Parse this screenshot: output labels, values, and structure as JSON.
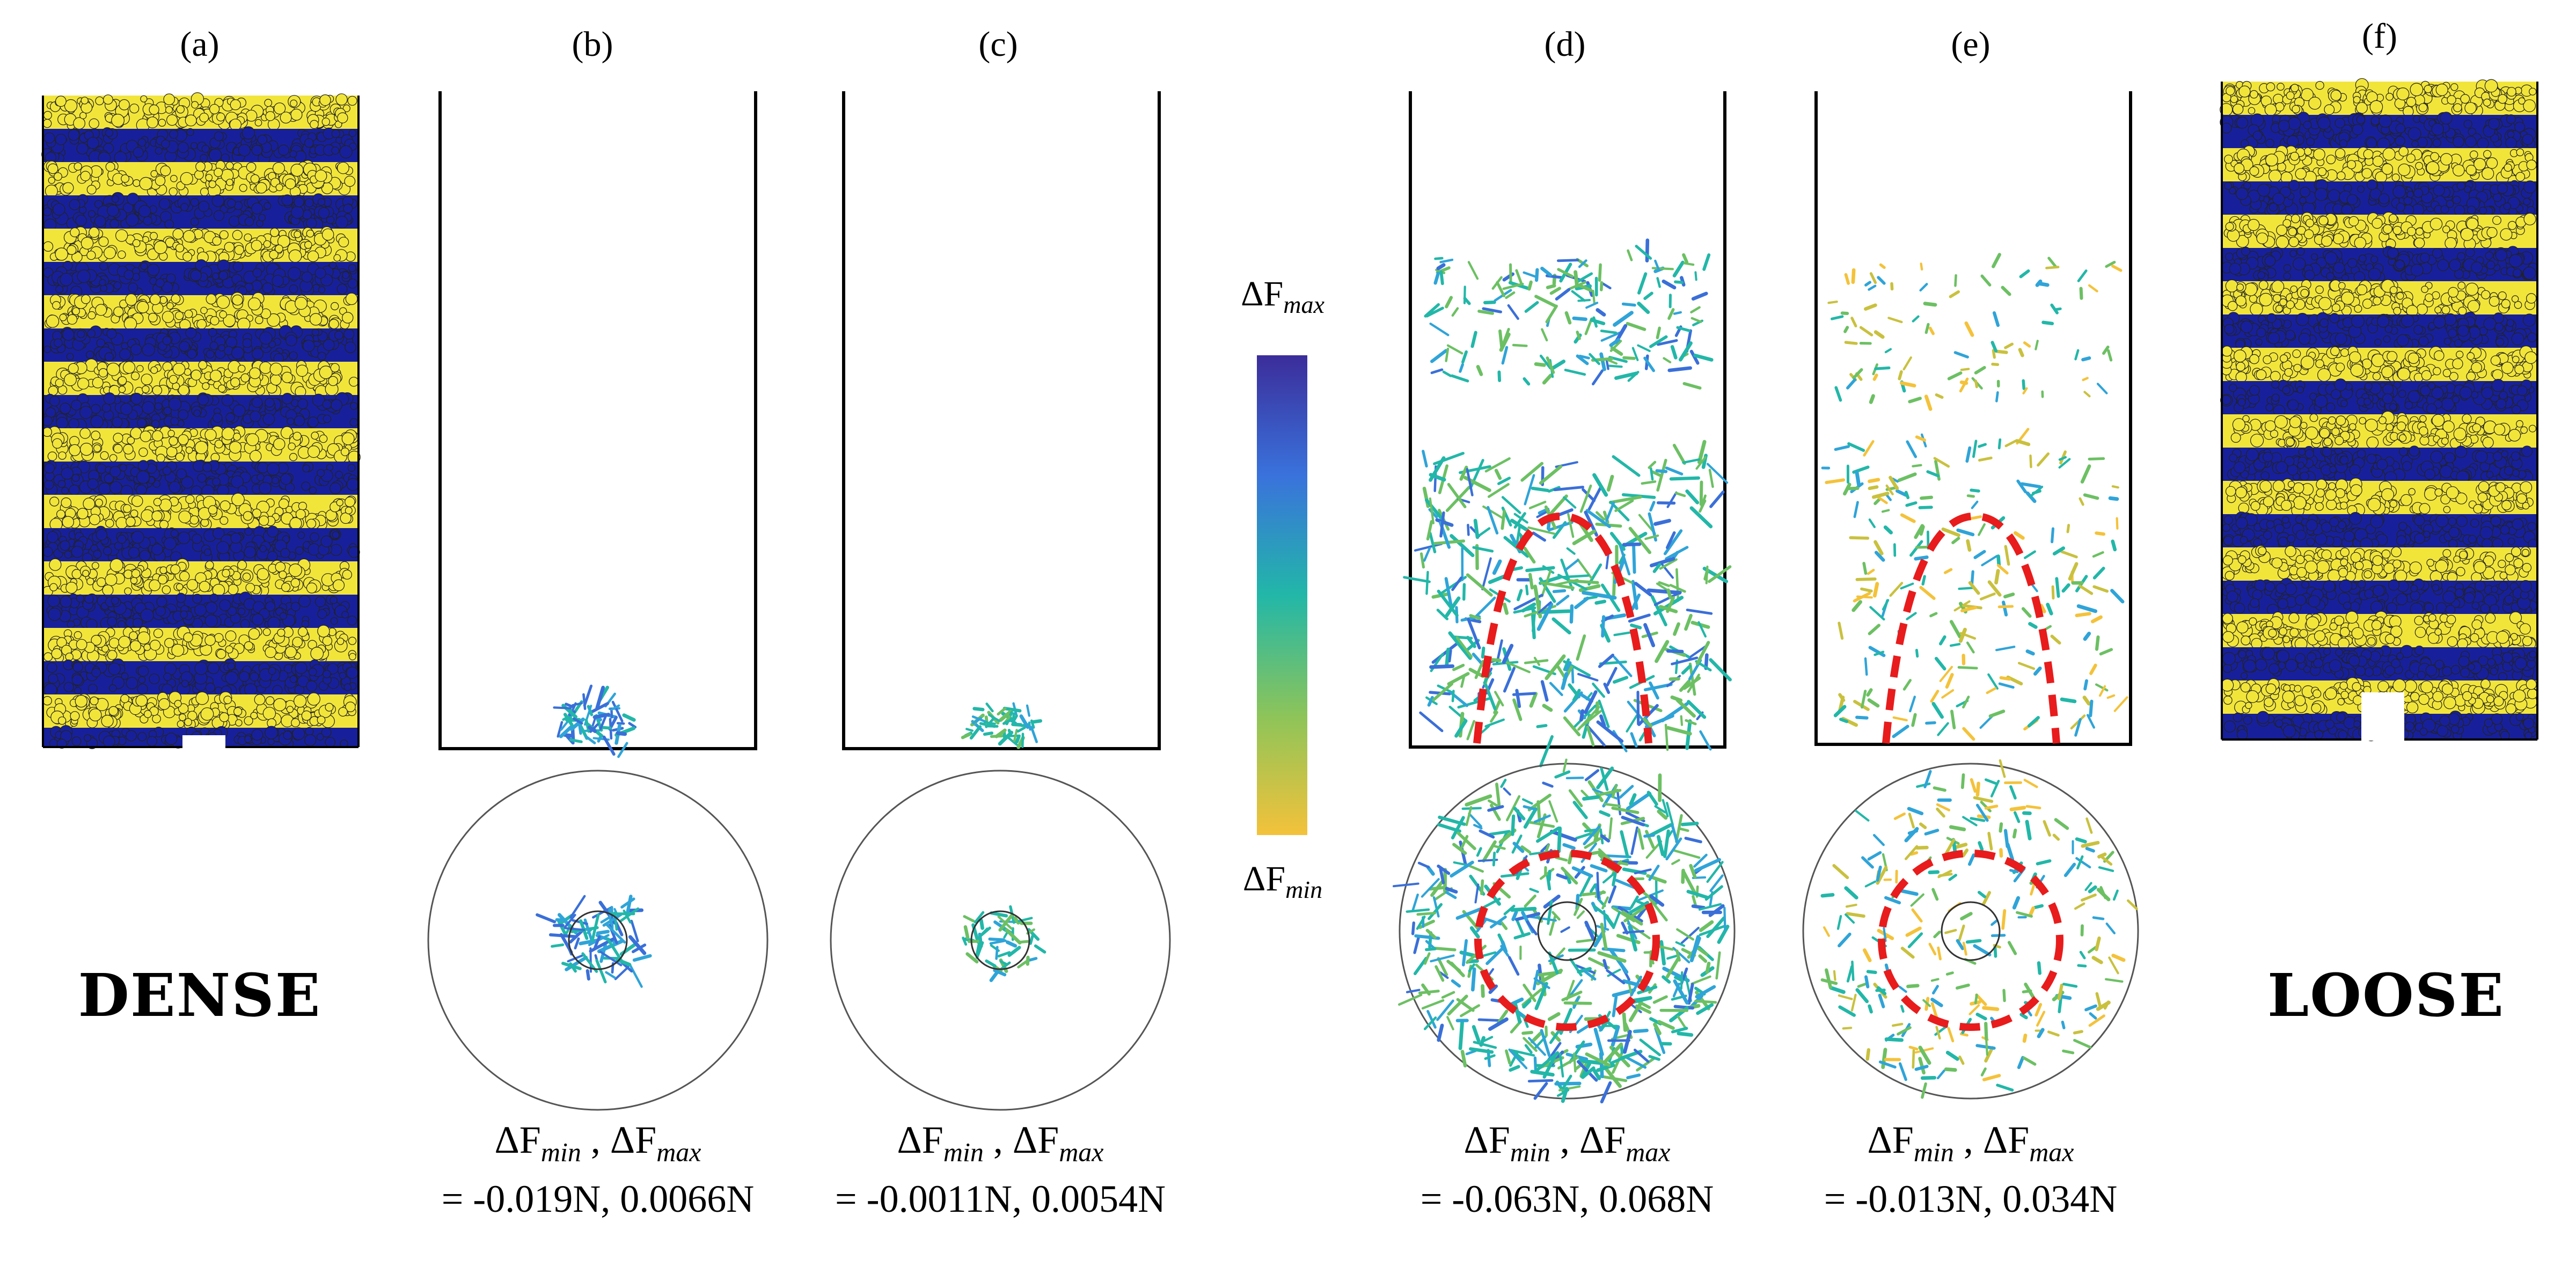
{
  "panels": [
    {
      "label": "(a)"
    },
    {
      "label": "(b)"
    },
    {
      "label": "(c)"
    },
    {
      "label": "(d)"
    },
    {
      "label": "(e)"
    },
    {
      "label": "(f)"
    }
  ],
  "words": {
    "dense": "DENSE",
    "loose": "LOOSE"
  },
  "colorbar": {
    "top_label": "ΔF",
    "top_sub": "max",
    "bottom_label": "ΔF",
    "bottom_sub": "min",
    "colors": [
      "#3b2d9a",
      "#3a6fd8",
      "#2fa4d8",
      "#22b7a8",
      "#6cc063",
      "#c9c13e",
      "#f4c23a"
    ]
  },
  "captions": [
    {
      "line1_a": "ΔF",
      "line1_a_sub": "min",
      "line1_sep": " , ",
      "line1_b": "ΔF",
      "line1_b_sub": "max",
      "line2": "= -0.019N, 0.0066N"
    },
    {
      "line1_a": "ΔF",
      "line1_a_sub": "min",
      "line1_sep": " , ",
      "line1_b": "ΔF",
      "line1_b_sub": "max",
      "line2": "= -0.0011N, 0.0054N"
    },
    {
      "line1_a": "ΔF",
      "line1_a_sub": "min",
      "line1_sep": " , ",
      "line1_b": "ΔF",
      "line1_b_sub": "max",
      "line2": "= -0.063N, 0.068N"
    },
    {
      "line1_a": "ΔF",
      "line1_a_sub": "min",
      "line1_sep": " , ",
      "line1_b": "ΔF",
      "line1_b_sub": "max",
      "line2": "= -0.013N, 0.034N"
    }
  ],
  "particle_colors": {
    "layer_yellow": "#f2e53a",
    "layer_blue": "#17209a"
  },
  "highlight_color": "#e81c1c"
}
